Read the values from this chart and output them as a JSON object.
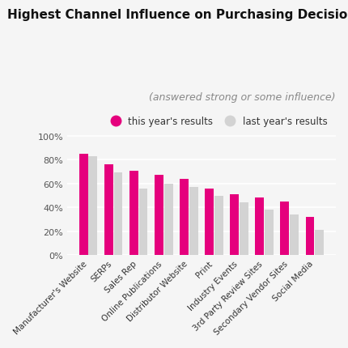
{
  "title": "Highest Channel Influence on Purchasing Decision",
  "subtitle": "(answered strong or some influence)",
  "categories": [
    "Manufacturer's Website",
    "SERPs",
    "Sales Rep",
    "Online Publications",
    "Distributor Website",
    "Print",
    "Industry Events",
    "3rd Party Review Sites",
    "Secondary Vendor Sites",
    "Social Media"
  ],
  "this_year": [
    0.85,
    0.76,
    0.71,
    0.67,
    0.64,
    0.56,
    0.51,
    0.48,
    0.45,
    0.32
  ],
  "last_year": [
    0.83,
    0.69,
    0.56,
    0.6,
    0.57,
    0.5,
    0.44,
    0.38,
    0.34,
    0.21
  ],
  "this_year_color": "#e5007d",
  "last_year_color": "#d3d3d3",
  "background_color": "#f5f5f5",
  "title_fontsize": 11,
  "subtitle_fontsize": 9,
  "legend_label_this": "this year's results",
  "legend_label_last": "last year's results",
  "yticks": [
    0,
    0.2,
    0.4,
    0.6,
    0.8,
    1.0
  ],
  "ylim": [
    0,
    1.05
  ]
}
